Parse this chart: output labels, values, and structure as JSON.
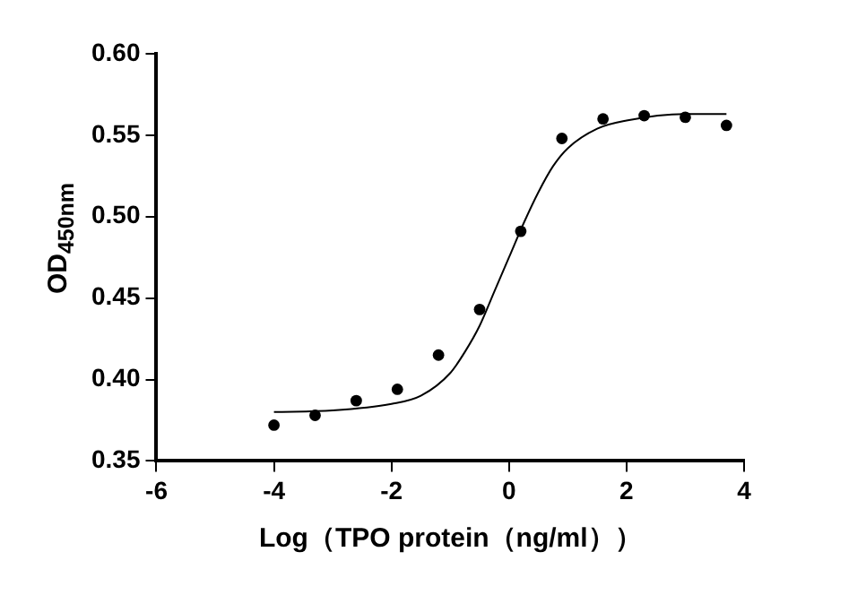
{
  "chart_data": {
    "type": "scatter",
    "xlabel": "Log（TPO protein（ng/ml））",
    "ylabel": "OD$_{450nm}$",
    "xlim": [
      -6,
      4
    ],
    "xticks": [
      -6,
      -4,
      -2,
      0,
      2,
      4
    ],
    "ylim": [
      0.35,
      0.6
    ],
    "yticks": [
      {
        "value": 0.35,
        "label": "0.35"
      },
      {
        "value": 0.4,
        "label": "0.40"
      },
      {
        "value": 0.45,
        "label": "0.45"
      },
      {
        "value": 0.5,
        "label": "0.50"
      },
      {
        "value": 0.55,
        "label": "0.55"
      },
      {
        "value": 0.6,
        "label": "0.60"
      }
    ],
    "grid": false,
    "legend": false,
    "marker": "circle",
    "series": [
      {
        "color": "#000000",
        "x": [
          -4,
          -3.3,
          -2.6,
          -1.9,
          -1.2,
          -0.5,
          0.2,
          0.9,
          1.6,
          2.3,
          3.0,
          3.7
        ],
        "values": [
          0.372,
          0.378,
          0.387,
          0.394,
          0.415,
          0.443,
          0.491,
          0.548,
          0.56,
          0.562,
          0.561,
          0.556
        ]
      },
      {
        "type": "line",
        "color": "#000000",
        "marker": "none",
        "line_style": "solid",
        "x": [
          -4,
          -3,
          -2,
          -1.5,
          -1,
          -0.75,
          -0.5,
          -0.25,
          0,
          0.25,
          0.5,
          0.75,
          1,
          1.5,
          2,
          3,
          3.7
        ],
        "values": [
          0.38,
          0.381,
          0.385,
          0.39,
          0.404,
          0.417,
          0.433,
          0.454,
          0.475,
          0.496,
          0.515,
          0.531,
          0.542,
          0.554,
          0.559,
          0.563,
          0.563
        ]
      }
    ]
  }
}
